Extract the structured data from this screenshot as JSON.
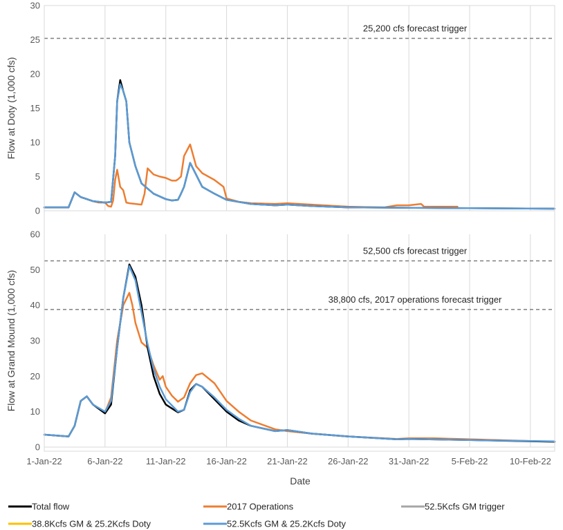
{
  "chart_data": {
    "type": "line",
    "xlabel": "Date",
    "x_range": [
      "2022-01-01",
      "2022-02-12"
    ],
    "x_tick_labels": [
      "1-Jan-22",
      "6-Jan-22",
      "11-Jan-22",
      "16-Jan-22",
      "21-Jan-22",
      "26-Jan-22",
      "31-Jan-22",
      "5-Feb-22",
      "10-Feb-22"
    ],
    "x_tick_dates": [
      "2022-01-01",
      "2022-01-06",
      "2022-01-11",
      "2022-01-16",
      "2022-01-21",
      "2022-01-26",
      "2022-01-31",
      "2022-02-05",
      "2022-02-10"
    ],
    "grid": "vertical",
    "legend_placement": "bottom",
    "legend": [
      {
        "label": "Total flow",
        "color": "#000000"
      },
      {
        "label": "2017 Operations",
        "color": "#ED7D31"
      },
      {
        "label": "52.5Kcfs GM trigger",
        "color": "#A5A5A5"
      },
      {
        "label": "38.8Kcfs GM & 25.2Kcfs Doty",
        "color": "#FFC000"
      },
      {
        "label": "52.5Kcfs GM & 25.2Kcfs Doty",
        "color": "#5B9BD5"
      }
    ],
    "panels": [
      {
        "ylabel": "Flow  at Doty (1,000 cfs)",
        "ylim": [
          0,
          30
        ],
        "yticks": [
          0,
          5,
          10,
          15,
          20,
          25,
          30
        ],
        "references": [
          {
            "value": 25.2,
            "label": "25,200 cfs forecast trigger"
          }
        ],
        "series": [
          {
            "name": "2017 Operations",
            "color": "#ED7D31",
            "x": [
              "2022-01-01",
              "2022-01-02",
              "2022-01-03",
              "2022-01-03 12:00",
              "2022-01-04",
              "2022-01-05",
              "2022-01-05 12:00",
              "2022-01-06",
              "2022-01-06 06:00",
              "2022-01-06 12:00",
              "2022-01-06 16:00",
              "2022-01-06 20:00",
              "2022-01-07",
              "2022-01-07 06:00",
              "2022-01-07 12:00",
              "2022-01-07 18:00",
              "2022-01-08",
              "2022-01-08 12:00",
              "2022-01-09",
              "2022-01-09 06:00",
              "2022-01-09 12:00",
              "2022-01-10",
              "2022-01-10 12:00",
              "2022-01-11",
              "2022-01-11 12:00",
              "2022-01-11 20:00",
              "2022-01-12",
              "2022-01-12 06:00",
              "2022-01-12 12:00",
              "2022-01-13",
              "2022-01-13 12:00",
              "2022-01-14",
              "2022-01-15",
              "2022-01-15 18:00",
              "2022-01-16",
              "2022-01-17",
              "2022-01-18",
              "2022-01-20",
              "2022-01-21",
              "2022-01-23",
              "2022-01-26",
              "2022-01-29",
              "2022-01-30",
              "2022-01-31",
              "2022-02-01",
              "2022-02-01 06:00",
              "2022-02-04"
            ],
            "y": [
              0.5,
              0.5,
              0.5,
              2.7,
              2.0,
              1.4,
              1.2,
              1.2,
              0.7,
              0.6,
              1.5,
              4.5,
              6.0,
              3.5,
              3.0,
              1.2,
              1.1,
              1.0,
              0.9,
              2.5,
              6.2,
              5.3,
              5.0,
              4.8,
              4.4,
              4.4,
              4.6,
              5.0,
              8.0,
              9.7,
              6.5,
              5.5,
              4.5,
              3.5,
              1.8,
              1.3,
              1.1,
              1.0,
              1.1,
              0.9,
              0.6,
              0.5,
              0.8,
              0.8,
              1.0,
              0.6,
              0.6
            ]
          },
          {
            "name": "Total flow",
            "color": "#000000",
            "x": [
              "2022-01-01",
              "2022-01-02",
              "2022-01-03",
              "2022-01-03 12:00",
              "2022-01-04",
              "2022-01-05",
              "2022-01-06",
              "2022-01-06 12:00",
              "2022-01-06 20:00",
              "2022-01-07",
              "2022-01-07 06:00",
              "2022-01-07 12:00",
              "2022-01-07 18:00",
              "2022-01-08",
              "2022-01-08 12:00",
              "2022-01-09",
              "2022-01-10",
              "2022-01-11",
              "2022-01-11 12:00",
              "2022-01-12",
              "2022-01-12 06:00",
              "2022-01-12 12:00",
              "2022-01-13",
              "2022-01-14",
              "2022-01-15",
              "2022-01-16",
              "2022-01-18",
              "2022-01-20",
              "2022-01-21",
              "2022-01-23",
              "2022-01-26",
              "2022-02-12"
            ],
            "y": [
              0.5,
              0.5,
              0.5,
              2.7,
              2.0,
              1.4,
              1.2,
              1.3,
              8.0,
              16.0,
              19.1,
              17.5,
              16.0,
              10.0,
              6.5,
              4.0,
              2.5,
              1.7,
              1.5,
              1.6,
              2.5,
              3.5,
              7.0,
              3.5,
              2.5,
              1.6,
              1.0,
              0.8,
              0.9,
              0.7,
              0.5,
              0.3
            ]
          },
          {
            "name": "52.5Kcfs GM & 25.2Kcfs Doty",
            "color": "#5B9BD5",
            "x": [
              "2022-01-01",
              "2022-01-02",
              "2022-01-03",
              "2022-01-03 12:00",
              "2022-01-04",
              "2022-01-05",
              "2022-01-06",
              "2022-01-06 12:00",
              "2022-01-06 20:00",
              "2022-01-07",
              "2022-01-07 06:00",
              "2022-01-07 12:00",
              "2022-01-07 18:00",
              "2022-01-08",
              "2022-01-08 12:00",
              "2022-01-09",
              "2022-01-10",
              "2022-01-11",
              "2022-01-11 12:00",
              "2022-01-12",
              "2022-01-12 06:00",
              "2022-01-12 12:00",
              "2022-01-13",
              "2022-01-14",
              "2022-01-15",
              "2022-01-16",
              "2022-01-18",
              "2022-01-20",
              "2022-01-21",
              "2022-01-23",
              "2022-01-26",
              "2022-02-12"
            ],
            "y": [
              0.5,
              0.5,
              0.5,
              2.7,
              2.0,
              1.4,
              1.2,
              1.3,
              8.0,
              16.0,
              18.5,
              17.5,
              16.0,
              10.0,
              6.5,
              4.0,
              2.5,
              1.7,
              1.5,
              1.6,
              2.5,
              3.5,
              7.0,
              3.5,
              2.5,
              1.6,
              1.0,
              0.8,
              0.9,
              0.7,
              0.5,
              0.3
            ]
          }
        ]
      },
      {
        "ylabel": "Flow  at Grand Mound  (1,000 cfs)",
        "ylim": [
          0,
          60
        ],
        "yticks": [
          0,
          10,
          20,
          30,
          40,
          50,
          60
        ],
        "references": [
          {
            "value": 52.5,
            "label": "52,500 cfs forecast trigger"
          },
          {
            "value": 38.8,
            "label": "38,800 cfs, 2017 operations forecast trigger"
          }
        ],
        "series": [
          {
            "name": "2017 Operations",
            "color": "#ED7D31",
            "x": [
              "2022-01-01",
              "2022-01-03",
              "2022-01-03 12:00",
              "2022-01-04",
              "2022-01-04 12:00",
              "2022-01-05",
              "2022-01-06",
              "2022-01-06 12:00",
              "2022-01-07",
              "2022-01-07 12:00",
              "2022-01-08",
              "2022-01-08 06:00",
              "2022-01-08 12:00",
              "2022-01-09",
              "2022-01-09 12:00",
              "2022-01-10",
              "2022-01-10 12:00",
              "2022-01-10 18:00",
              "2022-01-11",
              "2022-01-11 12:00",
              "2022-01-12",
              "2022-01-12 12:00",
              "2022-01-13",
              "2022-01-13 12:00",
              "2022-01-14",
              "2022-01-15",
              "2022-01-16",
              "2022-01-17",
              "2022-01-18",
              "2022-01-20",
              "2022-01-21",
              "2022-01-23",
              "2022-01-26",
              "2022-01-30",
              "2022-01-31",
              "2022-02-02",
              "2022-02-05",
              "2022-02-12"
            ],
            "y": [
              3.5,
              3.0,
              6.0,
              13.0,
              14.3,
              12.0,
              9.8,
              14.0,
              30.0,
              40.0,
              43.5,
              40.0,
              35.0,
              29.5,
              28.0,
              23.0,
              19.0,
              20.0,
              17.0,
              14.5,
              12.8,
              14.0,
              18.0,
              20.3,
              20.8,
              18.0,
              13.0,
              10.0,
              7.5,
              5.0,
              4.5,
              3.8,
              3.0,
              2.3,
              2.5,
              2.5,
              2.2,
              1.5
            ]
          },
          {
            "name": "Total flow",
            "color": "#000000",
            "x": [
              "2022-01-01",
              "2022-01-03",
              "2022-01-03 12:00",
              "2022-01-04",
              "2022-01-04 12:00",
              "2022-01-05",
              "2022-01-06",
              "2022-01-06 12:00",
              "2022-01-07",
              "2022-01-07 12:00",
              "2022-01-08",
              "2022-01-08 12:00",
              "2022-01-09",
              "2022-01-09 12:00",
              "2022-01-10",
              "2022-01-10 12:00",
              "2022-01-11",
              "2022-01-12",
              "2022-01-12 12:00",
              "2022-01-13",
              "2022-01-13 12:00",
              "2022-01-14",
              "2022-01-15",
              "2022-01-16",
              "2022-01-17",
              "2022-01-18",
              "2022-01-20",
              "2022-01-21",
              "2022-01-23",
              "2022-01-26",
              "2022-01-30",
              "2022-01-31",
              "2022-02-05",
              "2022-02-12"
            ],
            "y": [
              3.5,
              3.0,
              6.0,
              13.0,
              14.3,
              12.0,
              9.5,
              12.0,
              28.0,
              42.0,
              51.5,
              48.0,
              40.0,
              28.0,
              20.0,
              15.0,
              12.0,
              9.8,
              10.5,
              16.0,
              17.8,
              17.0,
              13.5,
              10.0,
              7.5,
              6.0,
              4.5,
              4.8,
              3.8,
              3.0,
              2.2,
              2.3,
              2.0,
              1.5
            ]
          },
          {
            "name": "52.5Kcfs GM & 25.2Kcfs Doty",
            "color": "#5B9BD5",
            "x": [
              "2022-01-01",
              "2022-01-03",
              "2022-01-03 12:00",
              "2022-01-04",
              "2022-01-04 12:00",
              "2022-01-05",
              "2022-01-06",
              "2022-01-06 12:00",
              "2022-01-07",
              "2022-01-07 12:00",
              "2022-01-08",
              "2022-01-08 12:00",
              "2022-01-09",
              "2022-01-09 12:00",
              "2022-01-10",
              "2022-01-10 12:00",
              "2022-01-11",
              "2022-01-12",
              "2022-01-12 12:00",
              "2022-01-13",
              "2022-01-13 12:00",
              "2022-01-14",
              "2022-01-15",
              "2022-01-16",
              "2022-01-17",
              "2022-01-18",
              "2022-01-20",
              "2022-01-21",
              "2022-01-23",
              "2022-01-26",
              "2022-01-30",
              "2022-01-31",
              "2022-02-05",
              "2022-02-12"
            ],
            "y": [
              3.5,
              3.0,
              6.0,
              13.0,
              14.3,
              12.0,
              10.0,
              13.0,
              28.0,
              42.0,
              51.0,
              47.0,
              38.0,
              29.0,
              22.0,
              17.0,
              13.5,
              10.0,
              10.5,
              15.5,
              17.8,
              17.0,
              14.0,
              10.5,
              8.0,
              6.0,
              4.5,
              4.8,
              3.8,
              3.0,
              2.2,
              2.3,
              2.0,
              1.6
            ]
          }
        ]
      }
    ]
  }
}
